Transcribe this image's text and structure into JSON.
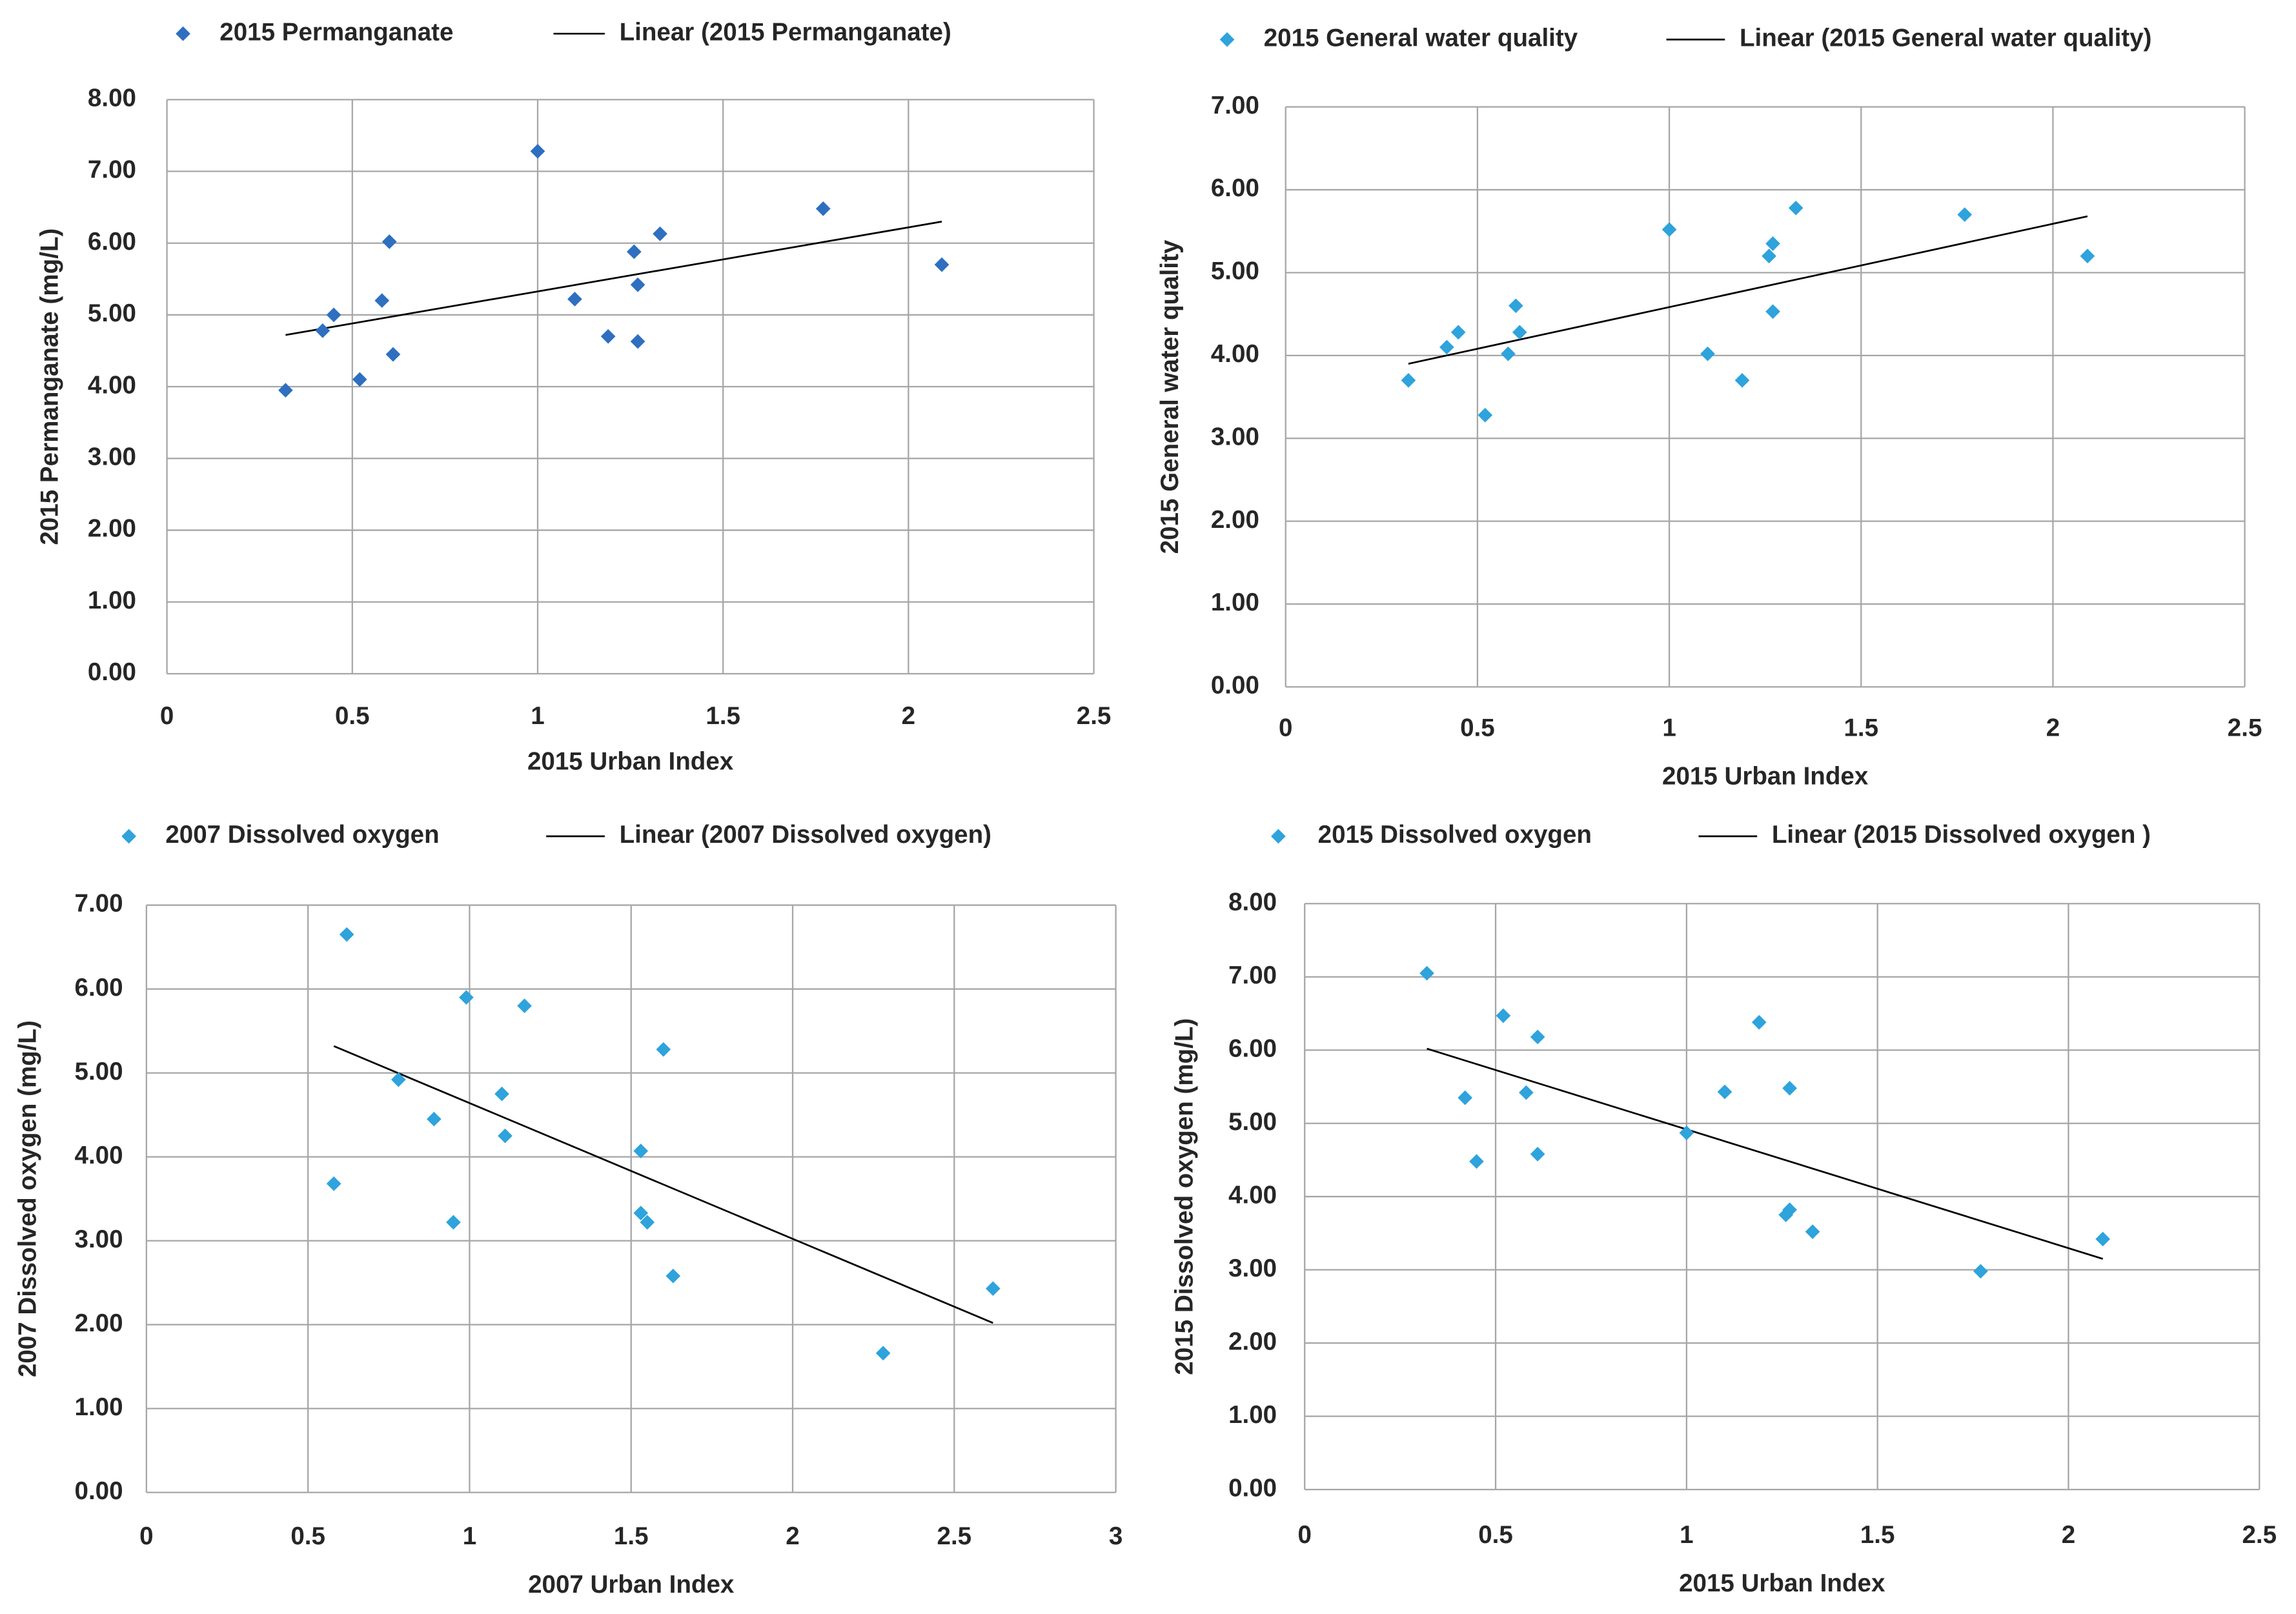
{
  "chart_data": [
    {
      "type": "scatter",
      "x_label": "2015 Urban Index",
      "y_label": "2015 Permanganate (mg/L)",
      "series": [
        {
          "name": "2015 Permanganate",
          "color": "#2e6fc0",
          "x": [
            0.32,
            0.42,
            0.45,
            0.52,
            0.58,
            0.6,
            0.61,
            1.0,
            1.1,
            1.19,
            1.26,
            1.27,
            1.27,
            1.33,
            1.77,
            2.09
          ],
          "y": [
            3.95,
            4.78,
            5.0,
            4.1,
            5.2,
            6.02,
            4.45,
            7.28,
            5.22,
            4.7,
            5.88,
            5.42,
            4.63,
            6.13,
            6.48,
            5.7
          ]
        }
      ],
      "trendline": {
        "name": "Linear (2015 Permanganate)",
        "color": "#000000",
        "x": [
          0.32,
          2.09
        ],
        "y": [
          4.72,
          6.3
        ]
      },
      "xlim": [
        0,
        2.5
      ],
      "xticks": [
        0,
        0.5,
        1,
        1.5,
        2,
        2.5
      ],
      "ylim": [
        0,
        8
      ],
      "yticks": [
        {
          "value": 0,
          "label": "0.00"
        },
        {
          "value": 1,
          "label": "1.00"
        },
        {
          "value": 2,
          "label": "2.00"
        },
        {
          "value": 3,
          "label": "3.00"
        },
        {
          "value": 4,
          "label": "4.00"
        },
        {
          "value": 5,
          "label": "5.00"
        },
        {
          "value": 6,
          "label": "6.00"
        },
        {
          "value": 7,
          "label": "7.00"
        },
        {
          "value": 8,
          "label": "8.00"
        }
      ],
      "grid": true,
      "legend": "top"
    },
    {
      "type": "scatter",
      "x_label": "2015 Urban Index",
      "y_label": "2015 General water quality",
      "series": [
        {
          "name": "2015 General water quality",
          "color": "#2ea3dc",
          "x": [
            0.32,
            0.42,
            0.45,
            0.52,
            0.58,
            0.6,
            0.61,
            1.0,
            1.1,
            1.19,
            1.26,
            1.27,
            1.27,
            1.33,
            1.77,
            2.09
          ],
          "y": [
            3.7,
            4.1,
            4.28,
            3.28,
            4.02,
            4.6,
            4.28,
            5.52,
            4.02,
            3.7,
            5.2,
            5.35,
            4.53,
            5.78,
            5.7,
            5.2
          ]
        }
      ],
      "trendline": {
        "name": "Linear (2015 General water quality)",
        "color": "#000000",
        "x": [
          0.32,
          2.09
        ],
        "y": [
          3.9,
          5.68
        ]
      },
      "xlim": [
        0,
        2.5
      ],
      "xticks": [
        0,
        0.5,
        1,
        1.5,
        2,
        2.5
      ],
      "ylim": [
        0,
        7
      ],
      "yticks": [
        {
          "value": 0,
          "label": "0.00"
        },
        {
          "value": 1,
          "label": "1.00"
        },
        {
          "value": 2,
          "label": "2.00"
        },
        {
          "value": 3,
          "label": "3.00"
        },
        {
          "value": 4,
          "label": "4.00"
        },
        {
          "value": 5,
          "label": "5.00"
        },
        {
          "value": 6,
          "label": "6.00"
        },
        {
          "value": 7,
          "label": "7.00"
        }
      ],
      "grid": true,
      "legend": "top"
    },
    {
      "type": "scatter",
      "x_label": "2007 Urban Index",
      "y_label": "2007 Dissolved oxygen (mg/L)",
      "series": [
        {
          "name": "2007 Dissolved oxygen",
          "color": "#2ea3dc",
          "x": [
            0.58,
            0.62,
            0.78,
            0.89,
            0.95,
            0.99,
            1.1,
            1.11,
            1.17,
            1.53,
            1.53,
            1.55,
            1.6,
            1.63,
            2.28,
            2.62
          ],
          "y": [
            3.68,
            6.65,
            4.92,
            4.45,
            3.22,
            5.9,
            4.75,
            4.25,
            5.8,
            4.07,
            3.33,
            3.22,
            5.28,
            2.58,
            1.66,
            2.43
          ]
        }
      ],
      "trendline": {
        "name": "Linear (2007 Dissolved oxygen)",
        "color": "#000000",
        "x": [
          0.58,
          2.62
        ],
        "y": [
          5.32,
          2.02
        ]
      },
      "xlim": [
        0,
        3
      ],
      "xticks": [
        0,
        0.5,
        1,
        1.5,
        2,
        2.5,
        3
      ],
      "ylim": [
        0,
        7
      ],
      "yticks": [
        {
          "value": 0,
          "label": "0.00"
        },
        {
          "value": 1,
          "label": "1.00"
        },
        {
          "value": 2,
          "label": "2.00"
        },
        {
          "value": 3,
          "label": "3.00"
        },
        {
          "value": 4,
          "label": "4.00"
        },
        {
          "value": 5,
          "label": "5.00"
        },
        {
          "value": 6,
          "label": "6.00"
        },
        {
          "value": 7,
          "label": "7.00"
        }
      ],
      "grid": true,
      "legend": "top"
    },
    {
      "type": "scatter",
      "x_label": "2015 Urban Index",
      "y_label": "2015 Dissolved oxygen (mg/L)",
      "series": [
        {
          "name": "2015 Dissolved oxygen",
          "color": "#2ea3dc",
          "x": [
            0.32,
            0.42,
            0.45,
            0.52,
            0.58,
            0.61,
            0.61,
            1.0,
            1.1,
            1.19,
            1.26,
            1.27,
            1.27,
            1.33,
            1.77,
            2.09
          ],
          "y": [
            7.05,
            5.35,
            4.48,
            6.47,
            5.42,
            4.58,
            6.18,
            4.87,
            5.43,
            6.38,
            3.75,
            5.48,
            3.82,
            3.52,
            2.98,
            3.42
          ]
        }
      ],
      "trendline": {
        "name": "Linear (2015 Dissolved oxygen )",
        "color": "#000000",
        "x": [
          0.32,
          2.09
        ],
        "y": [
          6.02,
          3.15
        ]
      },
      "xlim": [
        0,
        2.5
      ],
      "xticks": [
        0,
        0.5,
        1,
        1.5,
        2,
        2.5
      ],
      "ylim": [
        0,
        8
      ],
      "yticks": [
        {
          "value": 0,
          "label": "0.00"
        },
        {
          "value": 1,
          "label": "1.00"
        },
        {
          "value": 2,
          "label": "2.00"
        },
        {
          "value": 3,
          "label": "3.00"
        },
        {
          "value": 4,
          "label": "4.00"
        },
        {
          "value": 5,
          "label": "5.00"
        },
        {
          "value": 6,
          "label": "6.00"
        },
        {
          "value": 7,
          "label": "7.00"
        },
        {
          "value": 8,
          "label": "8.00"
        }
      ],
      "grid": true,
      "legend": "top"
    }
  ]
}
